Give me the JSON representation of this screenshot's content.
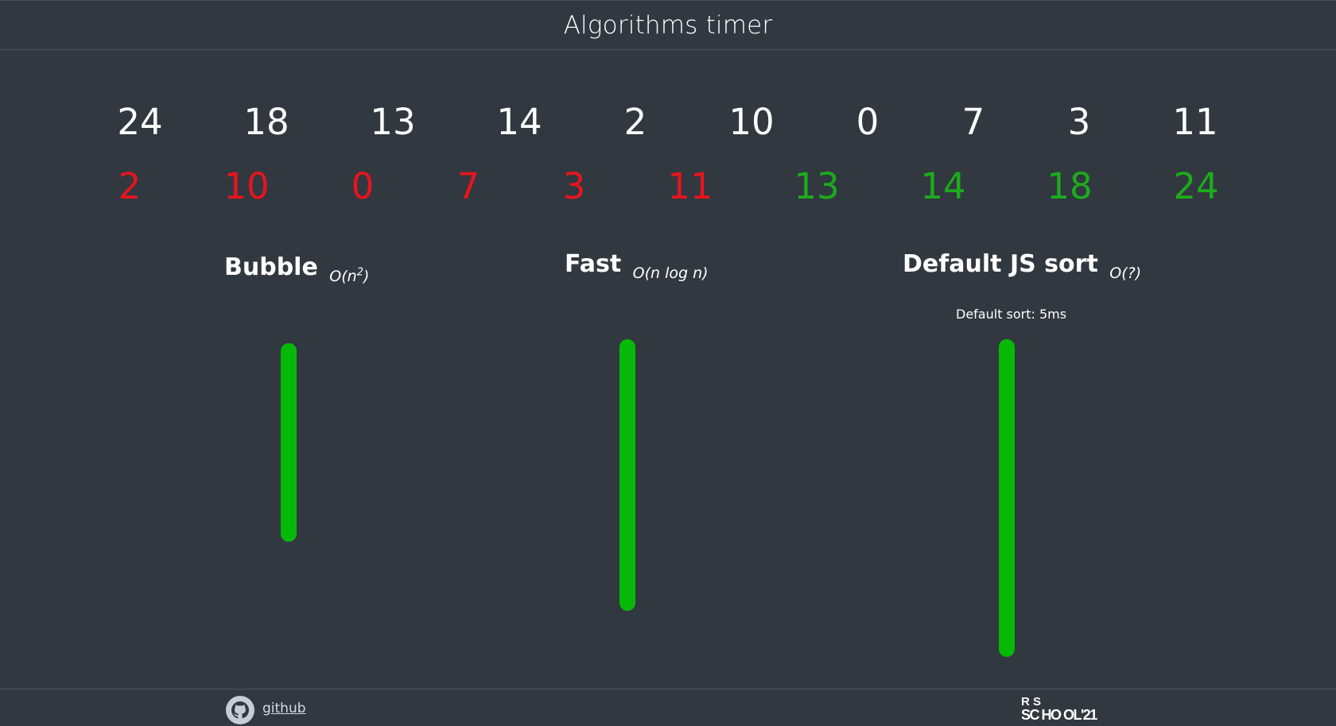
{
  "app": {
    "title": "Algorithms timer"
  },
  "original_numbers": [
    "24",
    "18",
    "13",
    "14",
    "2",
    "10",
    "0",
    "7",
    "3",
    "11"
  ],
  "sorted_numbers": [
    {
      "value": "2",
      "color": "#e8141c"
    },
    {
      "value": "10",
      "color": "#e8141c"
    },
    {
      "value": "0",
      "color": "#e8141c"
    },
    {
      "value": "7",
      "color": "#e8141c"
    },
    {
      "value": "3",
      "color": "#e8141c"
    },
    {
      "value": "11",
      "color": "#e8141c"
    },
    {
      "value": "13",
      "color": "#1cab1c"
    },
    {
      "value": "14",
      "color": "#1cab1c"
    },
    {
      "value": "18",
      "color": "#1cab1c"
    },
    {
      "value": "24",
      "color": "#1cab1c"
    }
  ],
  "algorithms": [
    {
      "name": "Bubble",
      "complexity_prefix": "O(n",
      "complexity_sup": "2",
      "complexity_suffix": ")",
      "result": "",
      "bar_color": "#07b907"
    },
    {
      "name": "Fast",
      "complexity_prefix": "O(n log n)",
      "complexity_sup": "",
      "complexity_suffix": "",
      "result": "",
      "bar_color": "#07b907"
    },
    {
      "name": "Default JS sort",
      "complexity_prefix": "O(?)",
      "complexity_sup": "",
      "complexity_suffix": "",
      "result": "Default sort: 5ms",
      "bar_color": "#07b907"
    }
  ],
  "footer": {
    "github_label": "github",
    "github_icon": "github-icon",
    "logo_line1": "R   S",
    "logo_line2": "SC HO OL'21"
  }
}
